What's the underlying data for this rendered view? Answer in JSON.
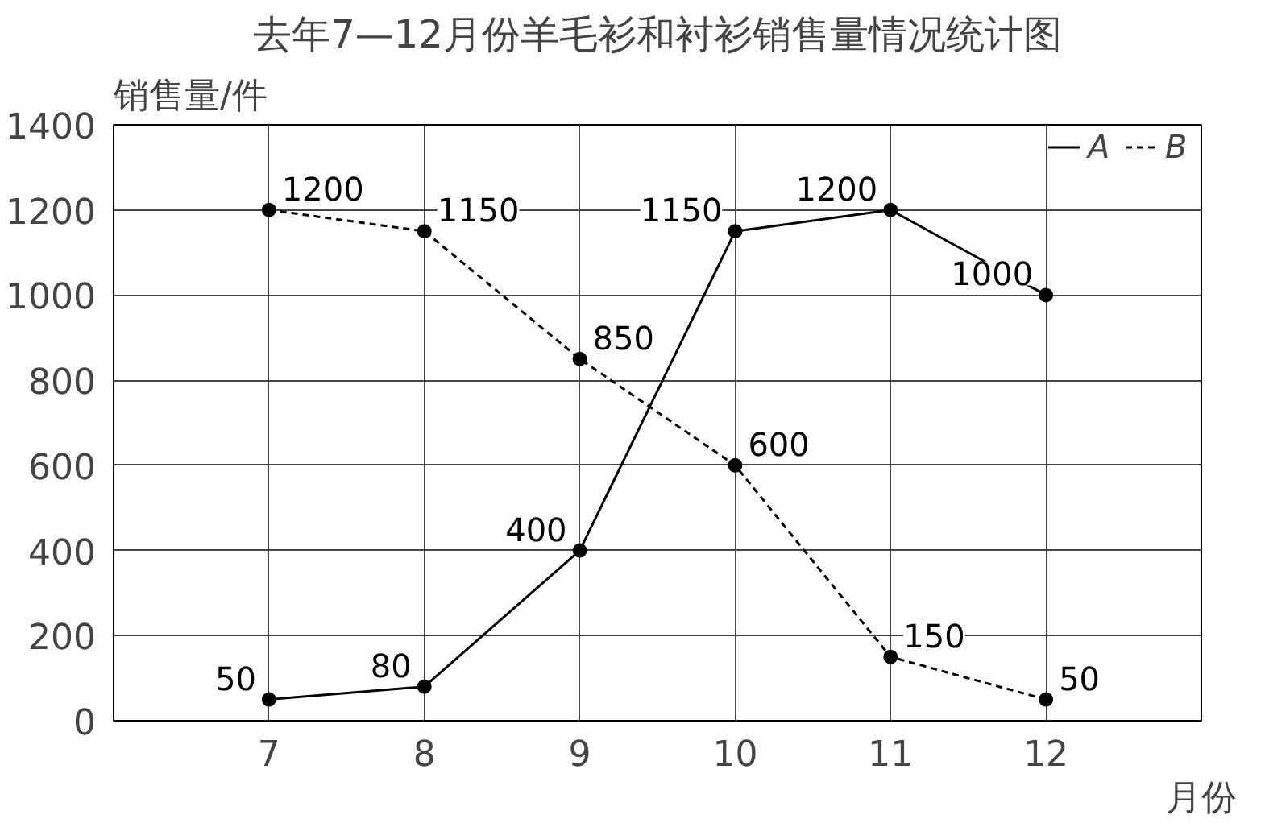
{
  "chart_data": {
    "type": "line",
    "title": "去年7—12月份羊毛衫和衬衫销售量情况统计图",
    "xlabel": "月份",
    "ylabel": "销售量/件",
    "x": [
      7,
      8,
      9,
      10,
      11,
      12
    ],
    "xlim": [
      6,
      13
    ],
    "xticks": [
      {
        "value": 6,
        "label": null
      },
      7,
      8,
      9,
      10,
      11,
      12,
      {
        "value": 13,
        "label": null
      }
    ],
    "ylim": [
      0,
      1400
    ],
    "yticks": [
      0,
      200,
      400,
      600,
      800,
      1000,
      1200,
      1400
    ],
    "grid": true,
    "legend": "top right",
    "marker": "circle",
    "data_labels": true,
    "series": [
      {
        "name": "A",
        "color": "#000000",
        "line_style": "solid",
        "values": [
          50,
          80,
          400,
          1150,
          1200,
          1000
        ]
      },
      {
        "name": "B",
        "color": "#000000",
        "line_style": "dashed",
        "values": [
          1200,
          1150,
          850,
          600,
          150,
          50
        ]
      }
    ]
  }
}
